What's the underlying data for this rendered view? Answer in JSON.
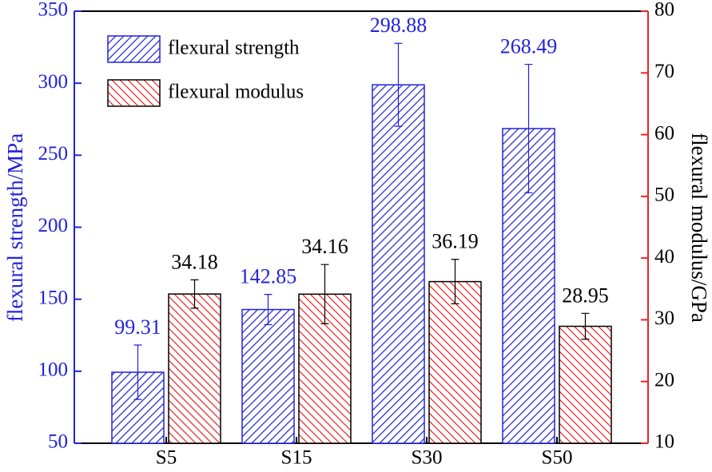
{
  "chart_data": {
    "type": "bar",
    "categories": [
      "S5",
      "S15",
      "S30",
      "S50"
    ],
    "series": [
      {
        "name": "flexural strength",
        "color": "#2222dd",
        "edgecolor": "#2222dd",
        "hatch": "/",
        "axis": "y",
        "values": [
          99.31,
          142.85,
          298.88,
          268.49
        ],
        "errors": [
          18.9,
          10.5,
          28.8,
          44.6
        ]
      },
      {
        "name": "flexural modulus",
        "color": "#ee2222",
        "edgecolor": "#000000",
        "hatch": "\\",
        "axis": "y2",
        "values": [
          34.18,
          34.16,
          36.19,
          28.95
        ],
        "errors": [
          2.3,
          4.8,
          3.6,
          2.1
        ]
      }
    ],
    "ylabel": "flexural strength/MPa",
    "y2label": "flexural modulus/GPa",
    "ylim": [
      50,
      350
    ],
    "yticks": [
      50,
      100,
      150,
      200,
      250,
      300,
      350
    ],
    "y2lim": [
      10,
      80
    ],
    "y2ticks": [
      10,
      20,
      30,
      40,
      50,
      60,
      70,
      80
    ],
    "legend": "upper left"
  }
}
